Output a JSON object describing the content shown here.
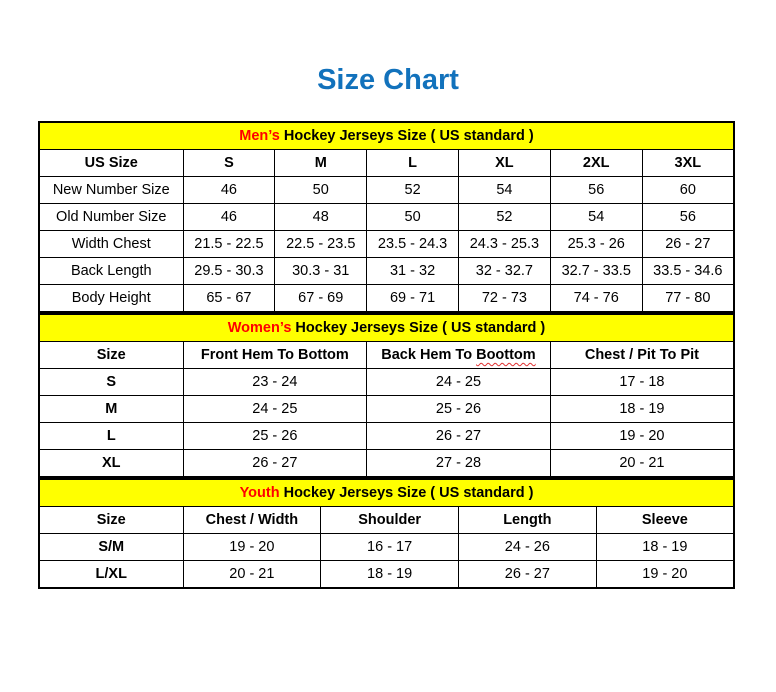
{
  "page": {
    "title": "Size Chart",
    "title_color": "#1272BC",
    "section_bg": "#FFFF00",
    "accent_color": "#FF0000",
    "border_color": "#000000"
  },
  "sections": [
    {
      "id": "mens",
      "heading_accent": "Men’s ",
      "heading_rest": "Hockey Jerseys Size ( US standard )",
      "columns": [
        "US Size",
        "S",
        "M",
        "L",
        "XL",
        "2XL",
        "3XL"
      ],
      "rows": [
        {
          "label": "New Number Size",
          "values": [
            "46",
            "50",
            "52",
            "54",
            "56",
            "60"
          ]
        },
        {
          "label": "Old Number Size",
          "values": [
            "46",
            "48",
            "50",
            "52",
            "54",
            "56"
          ]
        },
        {
          "label": "Width Chest",
          "values": [
            "21.5 - 22.5",
            "22.5 - 23.5",
            "23.5 - 24.3",
            "24.3 - 25.3",
            "25.3 - 26",
            "26 - 27"
          ]
        },
        {
          "label": "Back Length",
          "values": [
            "29.5 - 30.3",
            "30.3 - 31",
            "31 - 32",
            "32 - 32.7",
            "32.7 - 33.5",
            "33.5 - 34.6"
          ]
        },
        {
          "label": "Body Height",
          "values": [
            "65 - 67",
            "67 - 69",
            "69 - 71",
            "72 - 73",
            "74 - 76",
            "77 - 80"
          ]
        }
      ]
    },
    {
      "id": "womens",
      "heading_accent": "Women’s ",
      "heading_rest": "Hockey Jerseys Size ( US standard )",
      "columns": [
        "Size",
        "Front Hem To Bottom",
        {
          "prefix": "Back Hem To ",
          "word": "Boottom"
        },
        "Chest / Pit To Pit"
      ],
      "rows": [
        {
          "label": "S",
          "values": [
            "23 - 24",
            "24 - 25",
            "17 - 18"
          ]
        },
        {
          "label": "M",
          "values": [
            "24 - 25",
            "25 - 26",
            "18 - 19"
          ]
        },
        {
          "label": "L",
          "values": [
            "25 - 26",
            "26 - 27",
            "19 - 20"
          ]
        },
        {
          "label": "XL",
          "values": [
            "26 - 27",
            "27 - 28",
            "20 - 21"
          ]
        }
      ]
    },
    {
      "id": "youth",
      "heading_accent": "Youth ",
      "heading_rest": "Hockey Jerseys Size ( US standard )",
      "columns": [
        "Size",
        "Chest / Width",
        "Shoulder",
        "Length",
        "Sleeve"
      ],
      "rows": [
        {
          "label": "S/M",
          "values": [
            "19 - 20",
            "16 - 17",
            "24 - 26",
            "18 - 19"
          ]
        },
        {
          "label": "L/XL",
          "values": [
            "20 - 21",
            "18 - 19",
            "26 - 27",
            "19 - 20"
          ]
        }
      ]
    }
  ]
}
